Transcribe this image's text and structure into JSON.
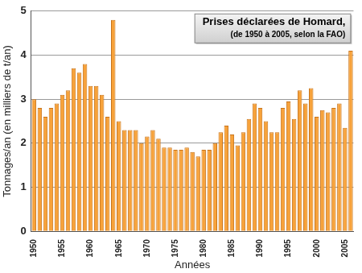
{
  "chart_data": {
    "type": "bar",
    "title": "Prises déclarées de Homard,",
    "subtitle": "(de 1950 à 2005, selon la FAO)",
    "x_label": "Années",
    "y_label": "Tonnages/an (en milliers de t/an)",
    "categories": [
      "1950",
      null,
      null,
      null,
      null,
      "1955",
      null,
      null,
      null,
      null,
      "1960",
      null,
      null,
      null,
      null,
      "1965",
      null,
      null,
      null,
      null,
      "1970",
      null,
      null,
      null,
      null,
      "1975",
      null,
      null,
      null,
      null,
      "1980",
      null,
      null,
      null,
      null,
      "1985",
      null,
      null,
      null,
      null,
      "1990",
      null,
      null,
      null,
      null,
      "1995",
      null,
      null,
      null,
      null,
      "2000",
      null,
      null,
      null,
      null,
      "2005",
      null
    ],
    "values": [
      3.0,
      2.8,
      2.6,
      2.8,
      2.9,
      3.1,
      3.2,
      3.7,
      3.6,
      3.8,
      3.3,
      3.3,
      3.1,
      2.6,
      4.8,
      2.5,
      2.3,
      2.3,
      2.3,
      2.0,
      2.15,
      2.3,
      2.1,
      1.9,
      1.9,
      1.85,
      1.85,
      1.9,
      1.8,
      1.7,
      1.85,
      1.85,
      2.0,
      2.25,
      2.4,
      2.2,
      1.95,
      2.25,
      2.55,
      2.9,
      2.8,
      2.5,
      2.25,
      2.25,
      2.8,
      2.95,
      2.55,
      3.2,
      2.9,
      3.25,
      2.6,
      2.75,
      2.7,
      2.8,
      2.9,
      2.35,
      4.1
    ],
    "color": "#f7a23a",
    "ylim": [
      0,
      5
    ],
    "yticks": [
      0,
      1,
      2,
      3,
      4,
      5
    ],
    "grid": true
  }
}
